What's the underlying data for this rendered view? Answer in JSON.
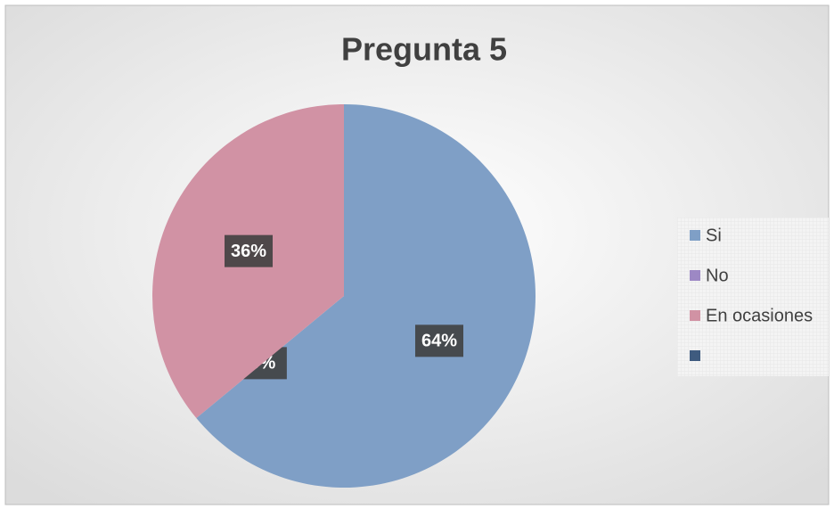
{
  "chart_data": {
    "type": "pie",
    "title": "Pregunta 5",
    "categories": [
      "Si",
      "No",
      "En ocasiones",
      null
    ],
    "values": [
      64,
      0,
      36,
      0
    ],
    "value_labels": [
      "64%",
      "0%",
      "36%",
      null
    ],
    "colors": [
      "#7f9fc6",
      "#9d88c4",
      "#d192a4",
      "#3f5b7f"
    ],
    "legend": "right"
  }
}
